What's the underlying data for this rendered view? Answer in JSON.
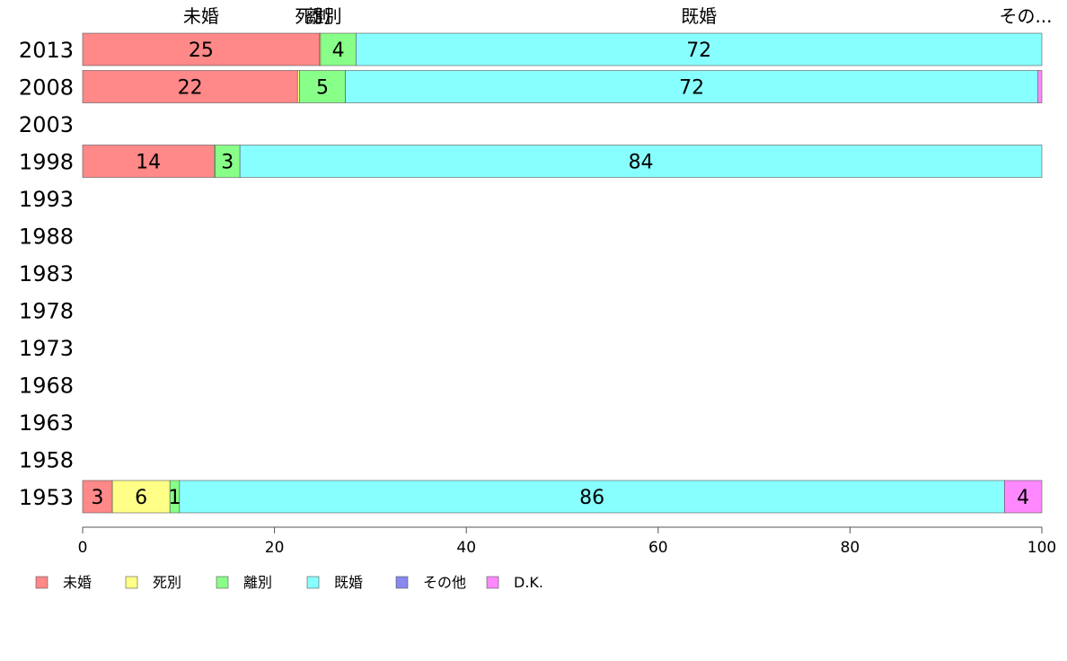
{
  "chart_data": {
    "type": "bar",
    "orientation": "horizontal",
    "stacked": true,
    "categories": [
      "2013",
      "2008",
      "2003",
      "1998",
      "1993",
      "1988",
      "1983",
      "1978",
      "1973",
      "1968",
      "1963",
      "1958",
      "1953"
    ],
    "series": [
      {
        "name": "未婚",
        "color": "#ff8888",
        "values": [
          24.7,
          22.4,
          null,
          13.7,
          null,
          null,
          null,
          null,
          null,
          null,
          null,
          null,
          3.1
        ]
      },
      {
        "name": "死別",
        "color": "#ffff88",
        "values": [
          0.1,
          0.2,
          null,
          0.1,
          null,
          null,
          null,
          null,
          null,
          null,
          null,
          null,
          6.0
        ]
      },
      {
        "name": "離別",
        "color": "#88ff88",
        "values": [
          3.7,
          4.8,
          null,
          2.6,
          null,
          null,
          null,
          null,
          null,
          null,
          null,
          null,
          1.0
        ]
      },
      {
        "name": "既婚",
        "color": "#88ffff",
        "values": [
          71.5,
          72.2,
          null,
          83.6,
          null,
          null,
          null,
          null,
          null,
          null,
          null,
          null,
          86.0
        ]
      },
      {
        "name": "その他",
        "color": "#8888ee",
        "values": [
          0.0,
          0.0,
          null,
          0.0,
          null,
          null,
          null,
          null,
          null,
          null,
          null,
          null,
          0.0
        ]
      },
      {
        "name": "D.K.",
        "color": "#ff88ff",
        "values": [
          0.0,
          0.4,
          null,
          0.0,
          null,
          null,
          null,
          null,
          null,
          null,
          null,
          null,
          3.9
        ]
      }
    ],
    "data_labels": {
      "2013": [
        "25",
        "",
        "4",
        "72",
        "",
        ""
      ],
      "2008": [
        "22",
        "",
        "5",
        "72",
        "",
        ""
      ],
      "1998": [
        "14",
        "",
        "3",
        "84",
        "",
        ""
      ],
      "1953": [
        "3",
        "6",
        "1",
        "86",
        "",
        "4"
      ]
    },
    "top_labels": [
      "未婚",
      "死別",
      "離別",
      "既婚",
      "その..."
    ],
    "xlim": [
      0,
      100
    ],
    "xticks": [
      0,
      20,
      40,
      60,
      80,
      100
    ],
    "grid": false,
    "legend_position": "bottom"
  }
}
